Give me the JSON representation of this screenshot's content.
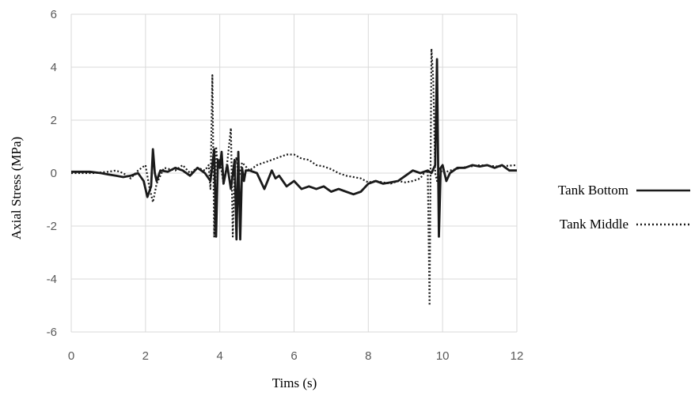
{
  "chart_data": {
    "type": "line",
    "xlabel": "Tims (s)",
    "ylabel": "Axial Stress (MPa)",
    "xlim": [
      0,
      12
    ],
    "ylim": [
      -6,
      6
    ],
    "x_ticks": [
      "0",
      "2",
      "4",
      "6",
      "8",
      "10",
      "12"
    ],
    "y_ticks": [
      "6",
      "4",
      "2",
      "0",
      "-2",
      "-4",
      "-6"
    ],
    "grid": "vertical and horizontal",
    "legend_position": "right",
    "series": [
      {
        "name": "Tank Bottom",
        "style": "solid",
        "color": "#1a1a1a",
        "x": [
          0,
          0.5,
          0.8,
          1.0,
          1.2,
          1.4,
          1.6,
          1.8,
          1.95,
          2.05,
          2.15,
          2.2,
          2.25,
          2.3,
          2.4,
          2.6,
          2.8,
          3.0,
          3.2,
          3.4,
          3.6,
          3.75,
          3.8,
          3.85,
          3.9,
          3.95,
          4.0,
          4.05,
          4.1,
          4.2,
          4.3,
          4.4,
          4.45,
          4.5,
          4.55,
          4.6,
          4.65,
          4.7,
          4.8,
          5.0,
          5.2,
          5.4,
          5.5,
          5.6,
          5.8,
          6.0,
          6.2,
          6.4,
          6.6,
          6.8,
          7.0,
          7.2,
          7.4,
          7.6,
          7.8,
          8.0,
          8.2,
          8.4,
          8.6,
          8.8,
          9.0,
          9.2,
          9.4,
          9.6,
          9.7,
          9.8,
          9.85,
          9.9,
          9.95,
          10.0,
          10.1,
          10.2,
          10.4,
          10.6,
          10.8,
          11.0,
          11.2,
          11.4,
          11.6,
          11.8,
          12.0
        ],
        "values": [
          0.05,
          0.05,
          0.0,
          -0.05,
          -0.1,
          -0.15,
          -0.1,
          0.0,
          -0.3,
          -0.9,
          -0.5,
          0.9,
          0.0,
          -0.3,
          0.1,
          0.05,
          0.2,
          0.1,
          -0.1,
          0.2,
          0.0,
          -0.3,
          0.3,
          0.9,
          -2.4,
          0.5,
          0.2,
          0.8,
          -0.4,
          0.3,
          -0.6,
          0.5,
          -2.5,
          0.8,
          -2.5,
          0.2,
          -0.3,
          0.1,
          0.1,
          0.0,
          -0.6,
          0.1,
          -0.2,
          -0.1,
          -0.5,
          -0.3,
          -0.6,
          -0.5,
          -0.6,
          -0.5,
          -0.7,
          -0.6,
          -0.7,
          -0.8,
          -0.7,
          -0.4,
          -0.3,
          -0.4,
          -0.35,
          -0.3,
          -0.1,
          0.1,
          0.0,
          0.1,
          0.0,
          0.3,
          4.3,
          -2.4,
          0.2,
          0.3,
          -0.3,
          0.0,
          0.2,
          0.2,
          0.3,
          0.25,
          0.3,
          0.2,
          0.3,
          0.1,
          0.1
        ]
      },
      {
        "name": "Tank Middle",
        "style": "dotted",
        "color": "#1a1a1a",
        "x": [
          0,
          0.6,
          1.0,
          1.2,
          1.4,
          1.6,
          1.8,
          2.0,
          2.1,
          2.2,
          2.3,
          2.5,
          2.8,
          3.0,
          3.2,
          3.4,
          3.6,
          3.7,
          3.75,
          3.8,
          3.85,
          3.9,
          3.95,
          4.0,
          4.1,
          4.2,
          4.3,
          4.35,
          4.4,
          4.45,
          4.5,
          4.6,
          4.8,
          5.0,
          5.2,
          5.4,
          5.6,
          5.8,
          6.0,
          6.2,
          6.4,
          6.6,
          6.8,
          7.0,
          7.2,
          7.4,
          7.6,
          7.8,
          8.0,
          8.2,
          8.4,
          8.6,
          8.8,
          9.0,
          9.2,
          9.4,
          9.5,
          9.6,
          9.65,
          9.7,
          9.75,
          9.8,
          9.85,
          9.9,
          10.0,
          10.2,
          10.5,
          11.0,
          11.5,
          12.0
        ],
        "values": [
          0.0,
          0.0,
          0.05,
          0.1,
          0.0,
          -0.2,
          0.1,
          0.3,
          -0.5,
          -1.1,
          -0.4,
          0.2,
          0.1,
          0.3,
          0.0,
          0.2,
          0.1,
          0.3,
          -0.6,
          3.7,
          -2.4,
          1.0,
          0.2,
          0.5,
          -0.4,
          0.4,
          1.7,
          -2.4,
          0.2,
          0.6,
          -0.3,
          0.4,
          0.1,
          0.3,
          0.4,
          0.5,
          0.6,
          0.7,
          0.7,
          0.55,
          0.5,
          0.3,
          0.25,
          0.15,
          0.0,
          -0.1,
          -0.15,
          -0.2,
          -0.35,
          -0.3,
          -0.35,
          -0.4,
          -0.3,
          -0.35,
          -0.3,
          -0.2,
          0.0,
          0.1,
          -5.0,
          4.7,
          3.5,
          0.0,
          -0.3,
          0.2,
          0.0,
          0.1,
          0.2,
          0.3,
          0.25,
          0.3
        ]
      }
    ]
  }
}
